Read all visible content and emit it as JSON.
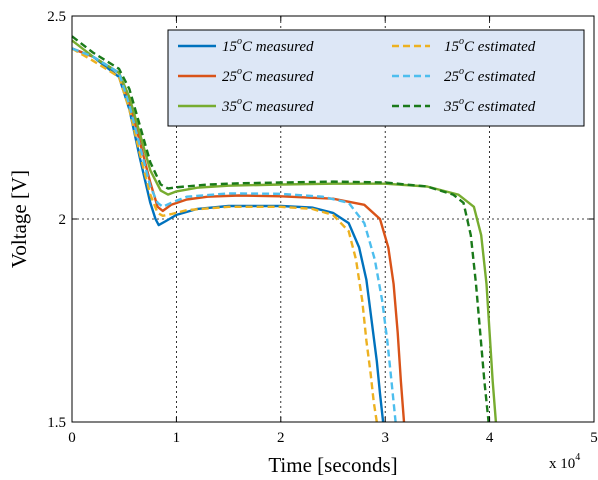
{
  "chart_data": {
    "type": "line",
    "xlabel": "Time [seconds]",
    "ylabel": "Voltage [V]",
    "x_multiplier_label": "x 10",
    "x_multiplier_exponent": "4",
    "xlim": [
      0,
      5
    ],
    "ylim": [
      1.5,
      2.5
    ],
    "xticks": [
      "0",
      "1",
      "2",
      "3",
      "4",
      "5"
    ],
    "yticks": [
      "1.5",
      "2",
      "2.5"
    ],
    "grid": true,
    "legend_position": "top-right",
    "series": [
      {
        "name": "15°C measured",
        "label_prefix": "15",
        "label_suffix": "C measured",
        "color": "#0072BD",
        "dash": "solid",
        "x": [
          0,
          0.2,
          0.45,
          0.55,
          0.65,
          0.75,
          0.8,
          0.83,
          0.9,
          1.0,
          1.2,
          1.5,
          2.0,
          2.3,
          2.5,
          2.65,
          2.75,
          2.82,
          2.87,
          2.92,
          2.95,
          2.98
        ],
        "y": [
          2.42,
          2.4,
          2.35,
          2.27,
          2.15,
          2.04,
          2.0,
          1.985,
          1.995,
          2.01,
          2.025,
          2.032,
          2.032,
          2.028,
          2.015,
          1.99,
          1.93,
          1.85,
          1.75,
          1.65,
          1.57,
          1.5
        ]
      },
      {
        "name": "25°C measured",
        "label_prefix": "25",
        "label_suffix": "C measured",
        "color": "#D95319",
        "dash": "solid",
        "x": [
          0,
          0.2,
          0.45,
          0.55,
          0.65,
          0.75,
          0.82,
          0.87,
          0.95,
          1.1,
          1.3,
          1.6,
          2.0,
          2.5,
          2.8,
          2.95,
          3.03,
          3.08,
          3.12,
          3.15,
          3.18
        ],
        "y": [
          2.42,
          2.4,
          2.36,
          2.29,
          2.19,
          2.09,
          2.03,
          2.02,
          2.035,
          2.048,
          2.055,
          2.058,
          2.056,
          2.05,
          2.035,
          2.0,
          1.93,
          1.84,
          1.72,
          1.6,
          1.5
        ]
      },
      {
        "name": "35°C measured",
        "label_prefix": "35",
        "label_suffix": "C measured",
        "color": "#77AC30",
        "dash": "solid",
        "x": [
          0,
          0.2,
          0.45,
          0.55,
          0.65,
          0.75,
          0.85,
          0.92,
          1.0,
          1.2,
          1.5,
          2.0,
          2.5,
          3.0,
          3.4,
          3.7,
          3.85,
          3.92,
          3.97,
          4.0,
          4.03,
          4.06
        ],
        "y": [
          2.44,
          2.4,
          2.36,
          2.3,
          2.21,
          2.12,
          2.07,
          2.06,
          2.068,
          2.077,
          2.082,
          2.085,
          2.087,
          2.087,
          2.08,
          2.06,
          2.03,
          1.96,
          1.84,
          1.72,
          1.6,
          1.5
        ]
      },
      {
        "name": "15°C estimated",
        "label_prefix": "15",
        "label_suffix": "C estimated",
        "color": "#EDB120",
        "dash": "dashed",
        "x": [
          0,
          0.2,
          0.45,
          0.55,
          0.65,
          0.75,
          0.82,
          0.87,
          0.95,
          1.1,
          1.5,
          2.0,
          2.3,
          2.5,
          2.65,
          2.72,
          2.78,
          2.82,
          2.86,
          2.89,
          2.92
        ],
        "y": [
          2.42,
          2.39,
          2.35,
          2.27,
          2.16,
          2.06,
          2.015,
          2.008,
          2.012,
          2.022,
          2.03,
          2.03,
          2.025,
          2.01,
          1.97,
          1.9,
          1.8,
          1.7,
          1.62,
          1.55,
          1.5
        ]
      },
      {
        "name": "25°C estimated",
        "label_prefix": "25",
        "label_suffix": "C estimated",
        "color": "#4DBEEE",
        "dash": "dashed",
        "x": [
          0,
          0.2,
          0.45,
          0.55,
          0.65,
          0.75,
          0.82,
          0.87,
          0.95,
          1.1,
          1.5,
          2.0,
          2.4,
          2.65,
          2.8,
          2.9,
          2.97,
          3.02,
          3.06,
          3.1
        ],
        "y": [
          2.42,
          2.4,
          2.36,
          2.28,
          2.18,
          2.08,
          2.04,
          2.03,
          2.04,
          2.055,
          2.063,
          2.062,
          2.055,
          2.04,
          1.99,
          1.9,
          1.8,
          1.7,
          1.6,
          1.5
        ]
      },
      {
        "name": "35°C estimated",
        "label_prefix": "35",
        "label_suffix": "C estimated",
        "color": "#1A7A1A",
        "dash": "dashed",
        "x": [
          0,
          0.2,
          0.45,
          0.55,
          0.65,
          0.75,
          0.85,
          0.92,
          1.0,
          1.3,
          1.6,
          2.0,
          2.5,
          3.0,
          3.4,
          3.65,
          3.75,
          3.82,
          3.87,
          3.91,
          3.95,
          3.99
        ],
        "y": [
          2.45,
          2.41,
          2.37,
          2.32,
          2.23,
          2.14,
          2.085,
          2.075,
          2.078,
          2.085,
          2.088,
          2.09,
          2.092,
          2.09,
          2.08,
          2.06,
          2.04,
          1.96,
          1.84,
          1.72,
          1.6,
          1.5
        ]
      }
    ]
  }
}
